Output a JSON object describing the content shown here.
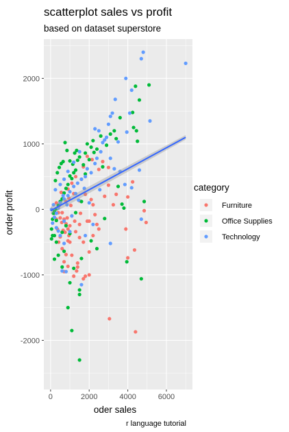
{
  "chart_data": {
    "type": "scatter",
    "title": "scatterplot sales vs profit",
    "subtitle": "based on dataset superstore",
    "xlabel": "oder sales",
    "ylabel": "order profit",
    "caption": "r language tutorial",
    "xlim": [
      -350,
      7350
    ],
    "ylim": [
      -2750,
      2600
    ],
    "x_ticks": [
      0,
      2000,
      4000,
      6000
    ],
    "y_ticks": [
      -2000,
      -1000,
      0,
      1000,
      2000
    ],
    "grid": true,
    "legend": {
      "title": "category",
      "position": "right"
    },
    "series": [
      {
        "name": "Furniture",
        "color": "#F8766D",
        "points": [
          [
            3050,
            -1670
          ],
          [
            4400,
            -1870
          ],
          [
            4350,
            -620
          ],
          [
            3900,
            -300
          ],
          [
            4000,
            -740
          ],
          [
            4850,
            -20
          ],
          [
            4950,
            -200
          ],
          [
            4000,
            190
          ],
          [
            4250,
            420
          ],
          [
            3400,
            230
          ],
          [
            3000,
            370
          ],
          [
            3250,
            70
          ],
          [
            2300,
            -80
          ],
          [
            2000,
            -180
          ],
          [
            2100,
            150
          ],
          [
            1800,
            230
          ],
          [
            1500,
            -230
          ],
          [
            2500,
            -300
          ],
          [
            2200,
            -400
          ],
          [
            2000,
            -650
          ],
          [
            1700,
            -500
          ],
          [
            1500,
            -430
          ],
          [
            1400,
            -820
          ],
          [
            1350,
            -940
          ],
          [
            1000,
            -500
          ],
          [
            900,
            -300
          ],
          [
            800,
            -220
          ],
          [
            700,
            -150
          ],
          [
            600,
            -50
          ],
          [
            500,
            -130
          ],
          [
            450,
            60
          ],
          [
            800,
            120
          ],
          [
            900,
            310
          ],
          [
            1100,
            400
          ],
          [
            1300,
            500
          ],
          [
            1600,
            460
          ],
          [
            1200,
            240
          ],
          [
            1300,
            -340
          ],
          [
            1000,
            -250
          ],
          [
            900,
            -480
          ],
          [
            800,
            -690
          ],
          [
            700,
            -800
          ],
          [
            900,
            -870
          ],
          [
            1100,
            -700
          ],
          [
            300,
            100
          ],
          [
            400,
            -50
          ],
          [
            350,
            -300
          ],
          [
            500,
            -420
          ],
          [
            600,
            -600
          ],
          [
            700,
            -950
          ],
          [
            1200,
            -1020
          ],
          [
            1400,
            -880
          ],
          [
            1800,
            -1020
          ],
          [
            2000,
            -1000
          ],
          [
            1700,
            -1060
          ],
          [
            1900,
            -180
          ],
          [
            2200,
            70
          ],
          [
            2400,
            -230
          ],
          [
            2800,
            200
          ],
          [
            2500,
            610
          ],
          [
            2700,
            730
          ],
          [
            3000,
            640
          ],
          [
            2150,
            760
          ],
          [
            1900,
            810
          ],
          [
            1700,
            650
          ],
          [
            1500,
            130
          ],
          [
            1100,
            -100
          ],
          [
            650,
            -320
          ],
          [
            550,
            260
          ],
          [
            950,
            170
          ],
          [
            300,
            -150
          ],
          [
            200,
            -60
          ],
          [
            420,
            -500
          ],
          [
            750,
            -350
          ],
          [
            860,
            -130
          ],
          [
            1250,
            -180
          ],
          [
            1550,
            -60
          ],
          [
            950,
            -400
          ],
          [
            580,
            -200
          ],
          [
            1050,
            60
          ]
        ]
      },
      {
        "name": "Office Supplies",
        "color": "#00BA38",
        "points": [
          [
            1500,
            -2300
          ],
          [
            1100,
            -1850
          ],
          [
            900,
            -1500
          ],
          [
            1500,
            -1300
          ],
          [
            1500,
            -1230
          ],
          [
            3950,
            -800
          ],
          [
            4700,
            -1060
          ],
          [
            3800,
            20
          ],
          [
            4850,
            120
          ],
          [
            4250,
            1480
          ],
          [
            5100,
            1900
          ],
          [
            4600,
            1670
          ],
          [
            4300,
            1250
          ],
          [
            4450,
            1200
          ],
          [
            4500,
            1040
          ],
          [
            3100,
            1150
          ],
          [
            3400,
            1080
          ],
          [
            2900,
            980
          ],
          [
            2400,
            920
          ],
          [
            2250,
            870
          ],
          [
            2200,
            1050
          ],
          [
            2100,
            950
          ],
          [
            2000,
            760
          ],
          [
            1900,
            1000
          ],
          [
            1800,
            860
          ],
          [
            1700,
            680
          ],
          [
            1500,
            800
          ],
          [
            1400,
            750
          ],
          [
            1300,
            600
          ],
          [
            1200,
            560
          ],
          [
            1100,
            470
          ],
          [
            1000,
            510
          ],
          [
            900,
            380
          ],
          [
            800,
            320
          ],
          [
            700,
            250
          ],
          [
            600,
            160
          ],
          [
            500,
            120
          ],
          [
            400,
            60
          ],
          [
            300,
            10
          ],
          [
            200,
            -30
          ],
          [
            100,
            -150
          ],
          [
            50,
            -300
          ],
          [
            50,
            -450
          ],
          [
            100,
            -400
          ],
          [
            200,
            -400
          ],
          [
            300,
            -500
          ],
          [
            400,
            -700
          ],
          [
            200,
            -760
          ],
          [
            1000,
            -1120
          ],
          [
            1200,
            -900
          ],
          [
            700,
            -640
          ],
          [
            600,
            -350
          ],
          [
            800,
            -250
          ],
          [
            1300,
            -50
          ],
          [
            1600,
            120
          ],
          [
            2100,
            -480
          ],
          [
            2400,
            -600
          ],
          [
            2800,
            -140
          ],
          [
            3500,
            350
          ],
          [
            3700,
            80
          ],
          [
            250,
            440
          ],
          [
            350,
            560
          ],
          [
            450,
            640
          ],
          [
            550,
            700
          ],
          [
            650,
            730
          ],
          [
            750,
            1020
          ],
          [
            850,
            900
          ],
          [
            1000,
            740
          ],
          [
            1150,
            690
          ],
          [
            1250,
            860
          ],
          [
            1350,
            900
          ],
          [
            2600,
            1120
          ],
          [
            3300,
            1200
          ],
          [
            3600,
            1400
          ],
          [
            4400,
            1880
          ],
          [
            2700,
            650
          ],
          [
            1800,
            540
          ],
          [
            300,
            -170
          ],
          [
            150,
            -60
          ],
          [
            600,
            -880
          ],
          [
            1000,
            -370
          ],
          [
            1600,
            -750
          ]
        ]
      },
      {
        "name": "Technology",
        "color": "#619CFF",
        "points": [
          [
            4800,
            2400
          ],
          [
            4700,
            2300
          ],
          [
            7000,
            2230
          ],
          [
            3900,
            2000
          ],
          [
            4200,
            1820
          ],
          [
            3350,
            1680
          ],
          [
            3200,
            1470
          ],
          [
            3100,
            1420
          ],
          [
            5150,
            1350
          ],
          [
            3000,
            1300
          ],
          [
            2900,
            1100
          ],
          [
            2700,
            1020
          ],
          [
            2600,
            880
          ],
          [
            2400,
            780
          ],
          [
            2300,
            700
          ],
          [
            2100,
            560
          ],
          [
            1900,
            620
          ],
          [
            1800,
            500
          ],
          [
            1600,
            460
          ],
          [
            1400,
            400
          ],
          [
            1300,
            240
          ],
          [
            1200,
            350
          ],
          [
            1000,
            270
          ],
          [
            900,
            210
          ],
          [
            700,
            160
          ],
          [
            500,
            100
          ],
          [
            400,
            20
          ],
          [
            300,
            -60
          ],
          [
            200,
            -120
          ],
          [
            100,
            -210
          ],
          [
            50,
            0
          ],
          [
            150,
            70
          ],
          [
            300,
            -280
          ],
          [
            500,
            -400
          ],
          [
            700,
            -520
          ],
          [
            600,
            -940
          ],
          [
            800,
            -950
          ],
          [
            1600,
            -1150
          ],
          [
            3100,
            -520
          ],
          [
            4700,
            -150
          ],
          [
            4600,
            600
          ],
          [
            4200,
            330
          ],
          [
            3850,
            380
          ],
          [
            3600,
            580
          ],
          [
            3300,
            620
          ],
          [
            3100,
            780
          ],
          [
            2800,
            1060
          ],
          [
            2500,
            1200
          ],
          [
            2300,
            1230
          ],
          [
            1500,
            880
          ],
          [
            1200,
            720
          ],
          [
            900,
            580
          ],
          [
            700,
            460
          ],
          [
            500,
            380
          ],
          [
            250,
            300
          ],
          [
            1000,
            -340
          ],
          [
            1800,
            -400
          ],
          [
            2200,
            -230
          ],
          [
            2000,
            100
          ],
          [
            1100,
            -100
          ],
          [
            400,
            -330
          ],
          [
            650,
            210
          ],
          [
            850,
            70
          ],
          [
            1450,
            140
          ],
          [
            1750,
            320
          ],
          [
            3500,
            1030
          ],
          [
            3950,
            1180
          ],
          [
            4100,
            1470
          ],
          [
            2550,
            300
          ],
          [
            700,
            -180
          ]
        ]
      }
    ],
    "trend_line": {
      "color": "#3366FF",
      "points": [
        [
          0,
          -20
        ],
        [
          7000,
          1100
        ]
      ]
    }
  }
}
